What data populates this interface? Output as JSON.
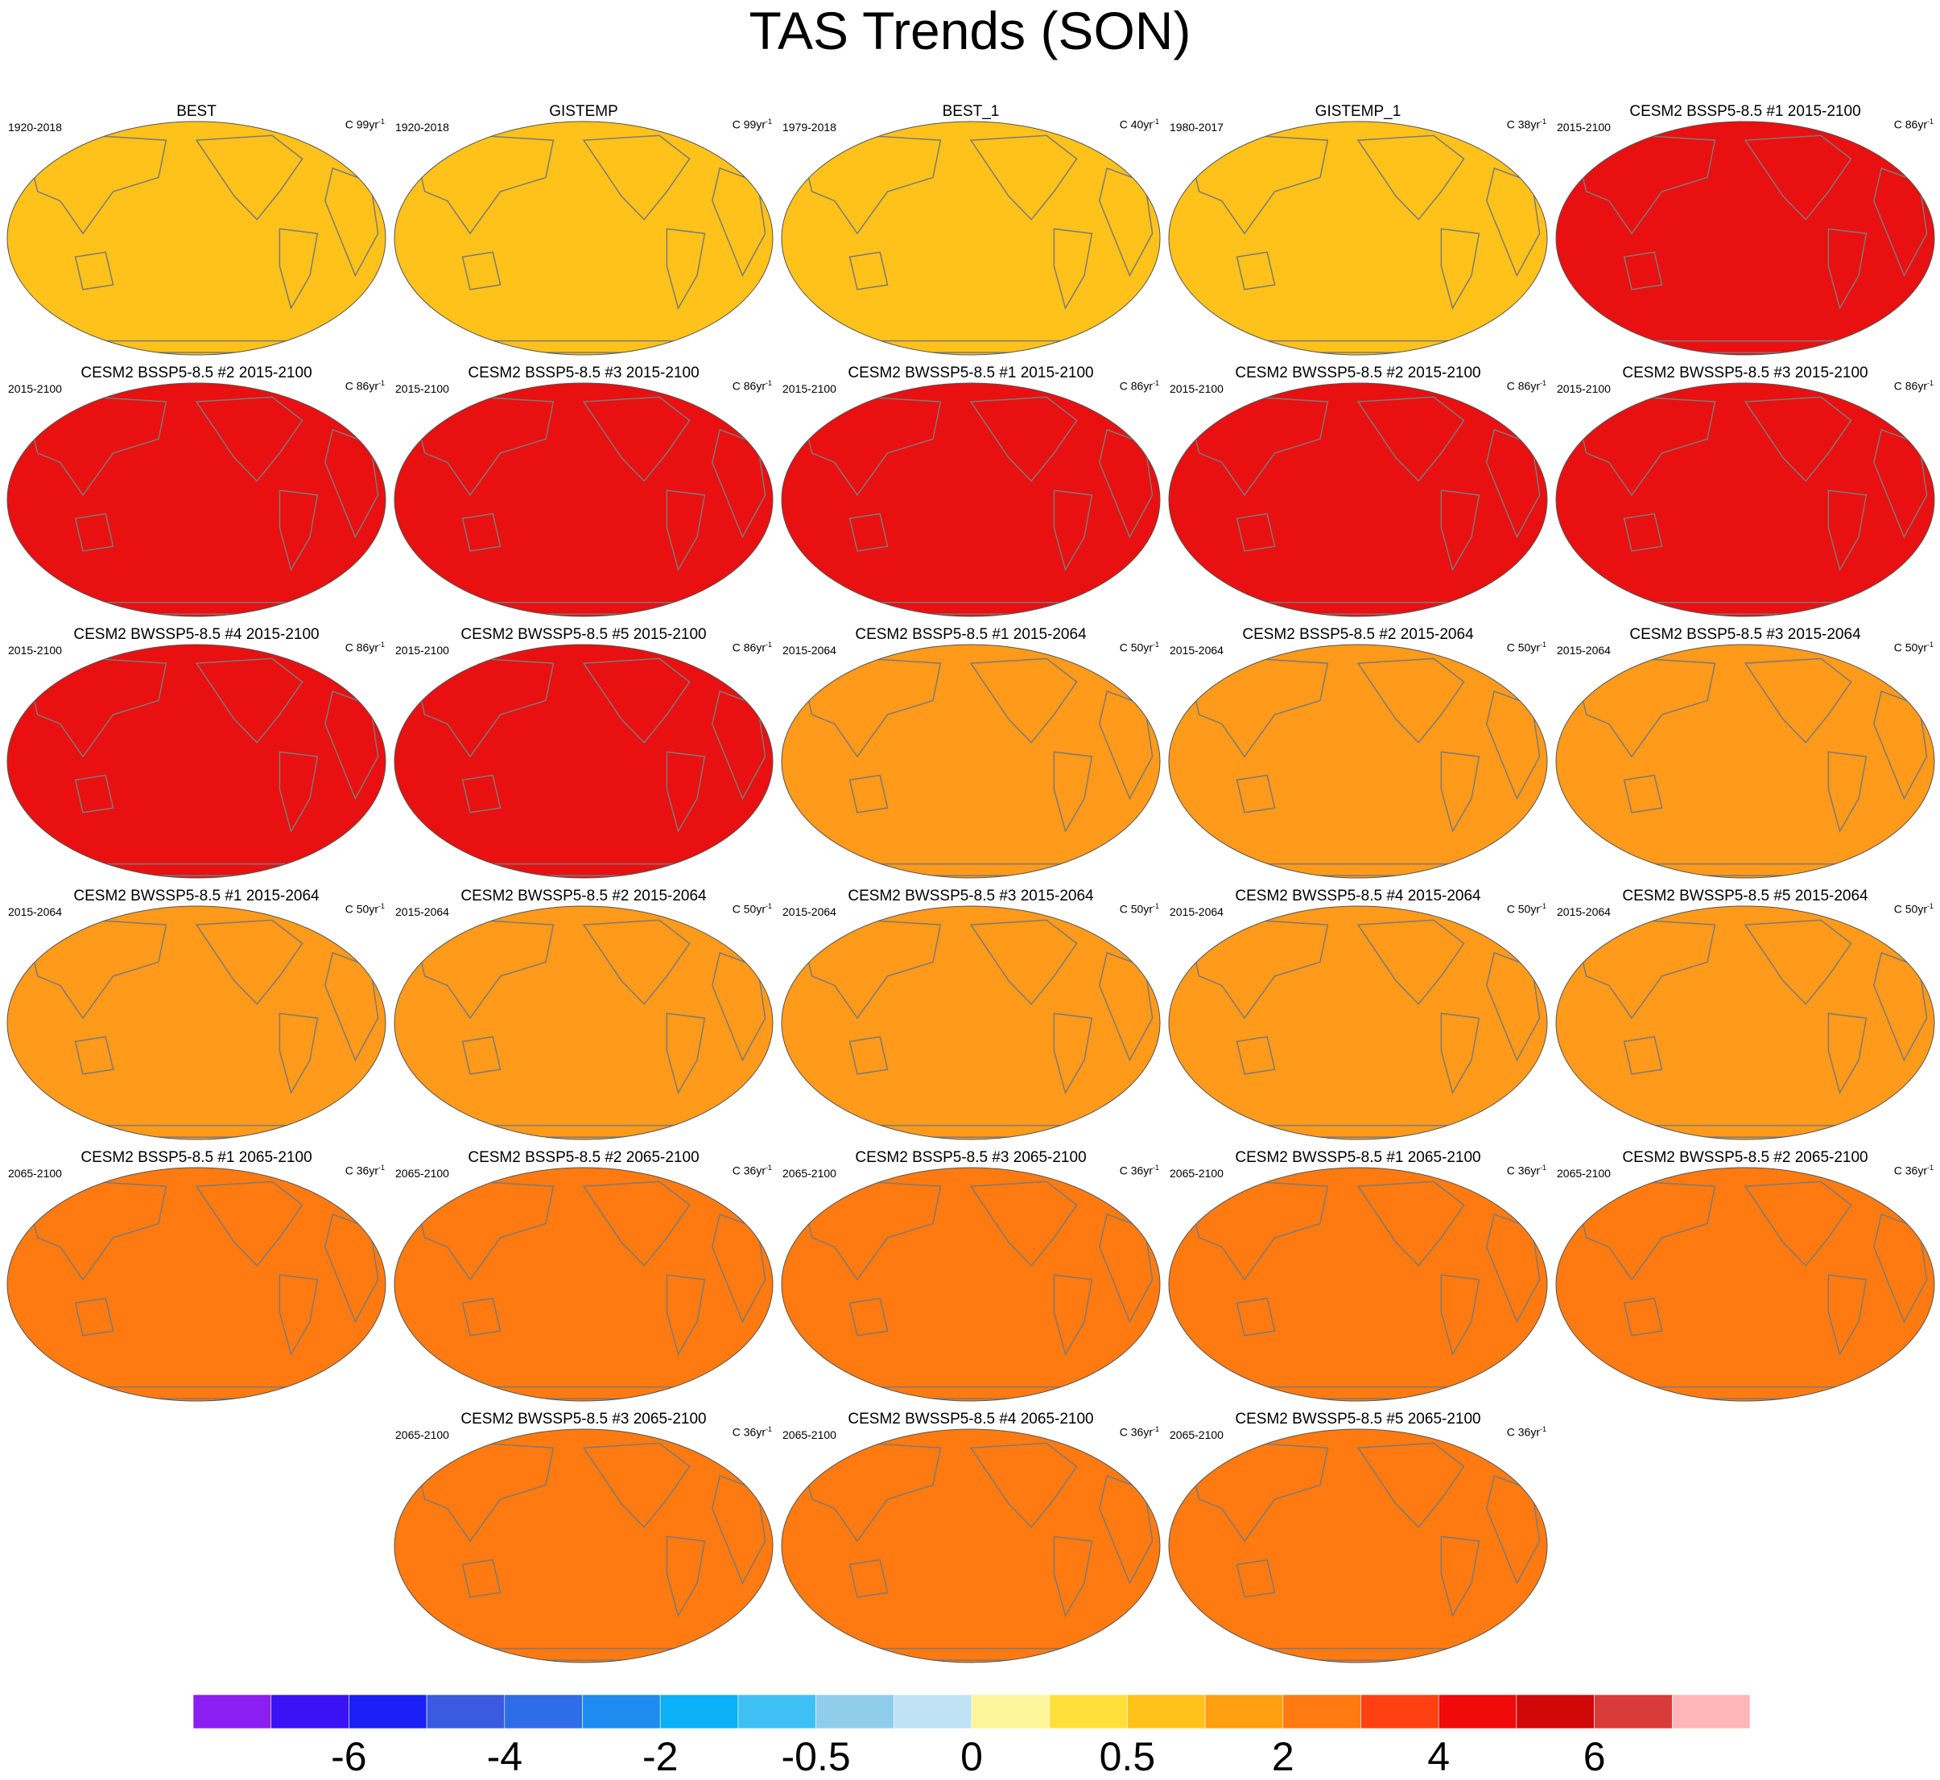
{
  "title": "TAS Trends (SON)",
  "colors": {
    "coastline": "#7a7a7a",
    "panel_fill_by_group": {
      "obs_long": "#ffc21a",
      "obs_short": "#ffc21a",
      "full_2015_2100": "#e81010",
      "mid_2015_2064": "#ff9a1a",
      "late_2065_2100": "#ff7a10"
    }
  },
  "panels": [
    {
      "title": "BEST",
      "period": "1920-2018",
      "units": "C 99yr",
      "group": "obs_long"
    },
    {
      "title": "GISTEMP",
      "period": "1920-2018",
      "units": "C 99yr",
      "group": "obs_long"
    },
    {
      "title": "BEST_1",
      "period": "1979-2018",
      "units": "C 40yr",
      "group": "obs_short"
    },
    {
      "title": "GISTEMP_1",
      "period": "1980-2017",
      "units": "C 38yr",
      "group": "obs_short"
    },
    {
      "title": "CESM2 BSSP5-8.5 #1 2015-2100",
      "period": "2015-2100",
      "units": "C 86yr",
      "group": "full_2015_2100"
    },
    {
      "title": "CESM2 BSSP5-8.5 #2 2015-2100",
      "period": "2015-2100",
      "units": "C 86yr",
      "group": "full_2015_2100"
    },
    {
      "title": "CESM2 BSSP5-8.5 #3 2015-2100",
      "period": "2015-2100",
      "units": "C 86yr",
      "group": "full_2015_2100"
    },
    {
      "title": "CESM2 BWSSP5-8.5 #1 2015-2100",
      "period": "2015-2100",
      "units": "C 86yr",
      "group": "full_2015_2100"
    },
    {
      "title": "CESM2 BWSSP5-8.5 #2 2015-2100",
      "period": "2015-2100",
      "units": "C 86yr",
      "group": "full_2015_2100"
    },
    {
      "title": "CESM2 BWSSP5-8.5 #3 2015-2100",
      "period": "2015-2100",
      "units": "C 86yr",
      "group": "full_2015_2100"
    },
    {
      "title": "CESM2 BWSSP5-8.5 #4 2015-2100",
      "period": "2015-2100",
      "units": "C 86yr",
      "group": "full_2015_2100"
    },
    {
      "title": "CESM2 BWSSP5-8.5 #5 2015-2100",
      "period": "2015-2100",
      "units": "C 86yr",
      "group": "full_2015_2100"
    },
    {
      "title": "CESM2 BSSP5-8.5 #1 2015-2064",
      "period": "2015-2064",
      "units": "C 50yr",
      "group": "mid_2015_2064"
    },
    {
      "title": "CESM2 BSSP5-8.5 #2 2015-2064",
      "period": "2015-2064",
      "units": "C 50yr",
      "group": "mid_2015_2064"
    },
    {
      "title": "CESM2 BSSP5-8.5 #3 2015-2064",
      "period": "2015-2064",
      "units": "C 50yr",
      "group": "mid_2015_2064"
    },
    {
      "title": "CESM2 BWSSP5-8.5 #1 2015-2064",
      "period": "2015-2064",
      "units": "C 50yr",
      "group": "mid_2015_2064"
    },
    {
      "title": "CESM2 BWSSP5-8.5 #2 2015-2064",
      "period": "2015-2064",
      "units": "C 50yr",
      "group": "mid_2015_2064"
    },
    {
      "title": "CESM2 BWSSP5-8.5 #3 2015-2064",
      "period": "2015-2064",
      "units": "C 50yr",
      "group": "mid_2015_2064"
    },
    {
      "title": "CESM2 BWSSP5-8.5 #4 2015-2064",
      "period": "2015-2064",
      "units": "C 50yr",
      "group": "mid_2015_2064"
    },
    {
      "title": "CESM2 BWSSP5-8.5 #5 2015-2064",
      "period": "2015-2064",
      "units": "C 50yr",
      "group": "mid_2015_2064"
    },
    {
      "title": "CESM2 BSSP5-8.5 #1 2065-2100",
      "period": "2065-2100",
      "units": "C 36yr",
      "group": "late_2065_2100"
    },
    {
      "title": "CESM2 BSSP5-8.5 #2 2065-2100",
      "period": "2065-2100",
      "units": "C 36yr",
      "group": "late_2065_2100"
    },
    {
      "title": "CESM2 BSSP5-8.5 #3 2065-2100",
      "period": "2065-2100",
      "units": "C 36yr",
      "group": "late_2065_2100"
    },
    {
      "title": "CESM2 BWSSP5-8.5 #1 2065-2100",
      "period": "2065-2100",
      "units": "C 36yr",
      "group": "late_2065_2100"
    },
    {
      "title": "CESM2 BWSSP5-8.5 #2 2065-2100",
      "period": "2065-2100",
      "units": "C 36yr",
      "group": "late_2065_2100"
    },
    {
      "title": "CESM2 BWSSP5-8.5 #3 2065-2100",
      "period": "2065-2100",
      "units": "C 36yr",
      "group": "late_2065_2100"
    },
    {
      "title": "CESM2 BWSSP5-8.5 #4 2065-2100",
      "period": "2065-2100",
      "units": "C 36yr",
      "group": "late_2065_2100"
    },
    {
      "title": "CESM2 BWSSP5-8.5 #5 2065-2100",
      "period": "2065-2100",
      "units": "C 36yr",
      "group": "late_2065_2100"
    }
  ],
  "colorbar": {
    "colors": [
      "#8b1ef0",
      "#3a12f5",
      "#1a1ff5",
      "#3a5ae0",
      "#2f6de8",
      "#1e8cf0",
      "#0ab0f8",
      "#3ec0f5",
      "#90cdeb",
      "#bfe2f5",
      "#fff59a",
      "#ffe03a",
      "#ffc21a",
      "#ffa010",
      "#ff7a10",
      "#ff4010",
      "#f00a0a",
      "#d00808",
      "#d93a3a",
      "#ffb6b9"
    ],
    "tick_labels": [
      {
        "label": "-6",
        "after_box": 2
      },
      {
        "label": "-4",
        "after_box": 4
      },
      {
        "label": "-2",
        "after_box": 6
      },
      {
        "label": "-0.5",
        "after_box": 8
      },
      {
        "label": "0",
        "after_box": 10
      },
      {
        "label": "0.5",
        "after_box": 12
      },
      {
        "label": "2",
        "after_box": 14
      },
      {
        "label": "4",
        "after_box": 16
      },
      {
        "label": "6",
        "after_box": 18
      }
    ]
  }
}
